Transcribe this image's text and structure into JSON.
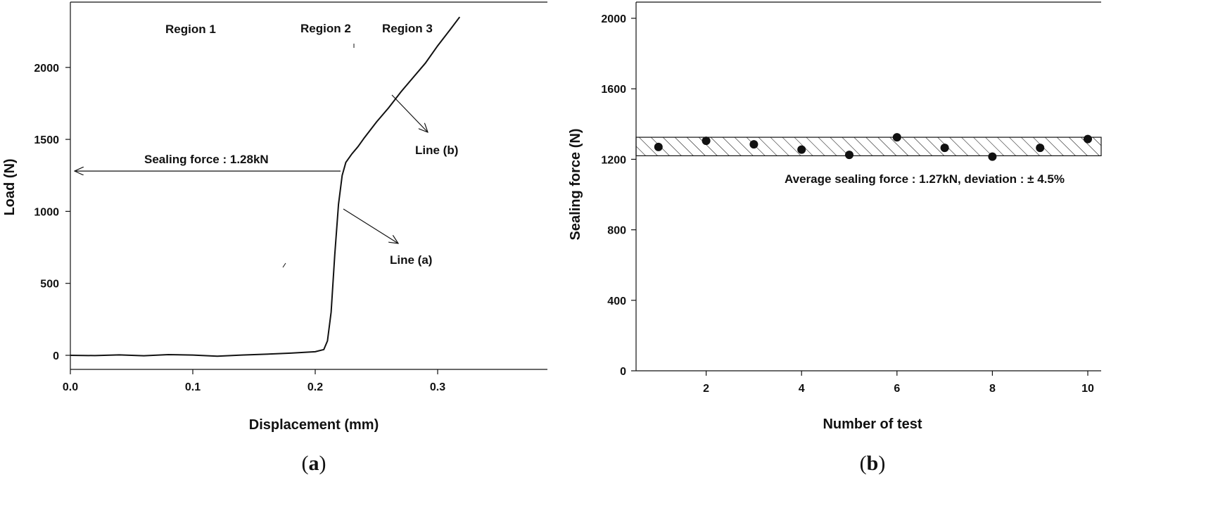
{
  "chart_data": [
    {
      "type": "line",
      "panel_label": "a",
      "xlabel": "Displacement (mm)",
      "ylabel": "Load (N)",
      "xlim": [
        0.0,
        0.39
      ],
      "ylim": [
        -100,
        2450
      ],
      "xticks": [
        0.0,
        0.1,
        0.2,
        0.3
      ],
      "xtick_labels": [
        "0.0",
        "0.1",
        "0.2",
        "0.3"
      ],
      "yticks": [
        0,
        500,
        1000,
        1500,
        2000
      ],
      "ytick_labels": [
        "0",
        "500",
        "1000",
        "1500",
        "2000"
      ],
      "grid": false,
      "series": [
        {
          "x": [
            0.0,
            0.02,
            0.04,
            0.06,
            0.08,
            0.1,
            0.12,
            0.14,
            0.16,
            0.18,
            0.2,
            0.207,
            0.21,
            0.213,
            0.216,
            0.219,
            0.222,
            0.225,
            0.23,
            0.235,
            0.24,
            0.25,
            0.26,
            0.27,
            0.28,
            0.29,
            0.3,
            0.31,
            0.318
          ],
          "y": [
            0,
            -2,
            3,
            -3,
            5,
            2,
            -6,
            2,
            8,
            15,
            25,
            40,
            100,
            300,
            700,
            1050,
            1250,
            1340,
            1400,
            1450,
            1510,
            1620,
            1720,
            1830,
            1930,
            2030,
            2150,
            2260,
            2350
          ]
        }
      ],
      "annotations": {
        "region1": "Region 1",
        "region2": "Region 2",
        "region3": "Region 3",
        "sealing_force": "Sealing force : 1.28kN",
        "line_a": "Line (a)",
        "line_b": "Line (b)"
      },
      "sealing_force_value": 1280
    },
    {
      "type": "scatter",
      "panel_label": "b",
      "xlabel": "Number of test",
      "ylabel": "Sealing force (N)",
      "xlim": [
        0.5,
        10.5
      ],
      "ylim": [
        0,
        2100
      ],
      "xticks": [
        2,
        4,
        6,
        8,
        10
      ],
      "xtick_labels": [
        "2",
        "4",
        "6",
        "8",
        "10"
      ],
      "yticks": [
        0,
        400,
        800,
        1200,
        1600,
        2000
      ],
      "ytick_labels": [
        "0",
        "400",
        "800",
        "1200",
        "1600",
        "2000"
      ],
      "grid": false,
      "series": [
        {
          "x": [
            1,
            2,
            3,
            4,
            5,
            6,
            7,
            8,
            9,
            10
          ],
          "y": [
            1270,
            1305,
            1285,
            1255,
            1225,
            1325,
            1265,
            1215,
            1265,
            1315
          ]
        }
      ],
      "band": {
        "low": 1220,
        "high": 1325
      },
      "annotation": "Average sealing force : 1.27kN, deviation : ±  4.5%"
    }
  ]
}
